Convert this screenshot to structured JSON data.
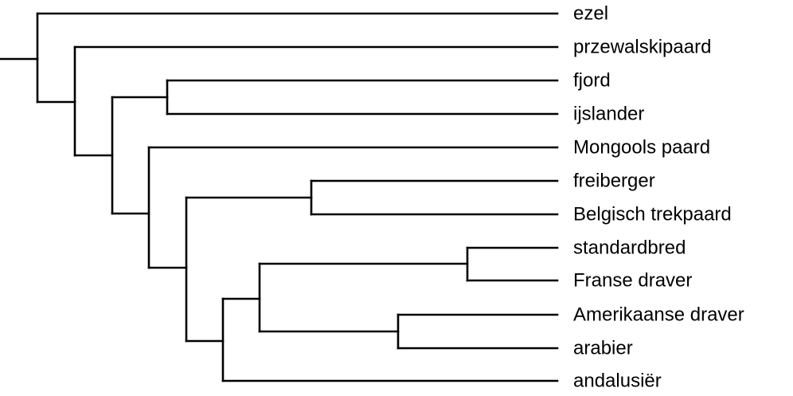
{
  "tree": {
    "leaves": [
      "ezel",
      "przewalskipaard",
      "fjord",
      "ijslander",
      "Mongools paard",
      "freiberger",
      "Belgisch trekpaard",
      "standardbred",
      "Franse draver",
      "Amerikaanse draver",
      "arabier",
      "andalusiër"
    ],
    "topology": [
      "ezel",
      [
        "przewalskipaard",
        [
          [
            "fjord",
            "ijslander"
          ],
          [
            "Mongools paard",
            [
              [
                "freiberger",
                "Belgisch trekpaard"
              ],
              [
                [
                  [
                    "standardbred",
                    "Franse draver"
                  ],
                  [
                    "Amerikaanse draver",
                    "arabier"
                  ]
                ],
                "andalusiër"
              ]
            ]
          ]
        ]
      ]
    ],
    "line_color": "#000000",
    "label_color": "#000000"
  }
}
